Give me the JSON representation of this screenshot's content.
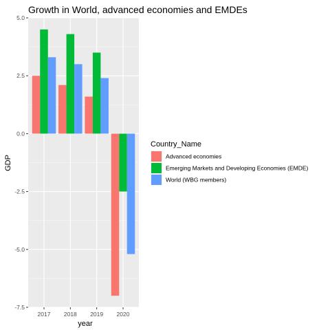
{
  "chart_data": {
    "type": "bar",
    "title": "Growth in World, advanced economies and EMDEs",
    "xlabel": "year",
    "ylabel": "GDP",
    "categories": [
      "2017",
      "2018",
      "2019",
      "2020"
    ],
    "series": [
      {
        "name": "Advanced economies",
        "color": "#F8766D",
        "values": [
          2.5,
          2.1,
          1.6,
          -7.0
        ]
      },
      {
        "name": "Emerging Markets and Developing Economies (EMDE)",
        "color": "#00BA38",
        "values": [
          4.5,
          4.3,
          3.5,
          -2.5
        ]
      },
      {
        "name": "World (WBG members)",
        "color": "#619CFF",
        "values": [
          3.3,
          3.0,
          2.4,
          -5.2
        ]
      }
    ],
    "ylim": [
      -7.5,
      5.0
    ],
    "yticks": [
      -7.5,
      -5.0,
      -2.5,
      0.0,
      2.5,
      5.0
    ],
    "ytick_labels": [
      "-7.5",
      "-5.0",
      "-2.5",
      "0.0",
      "2.5",
      "5.0"
    ],
    "grid": true,
    "legend_title": "Country_Name",
    "legend_position": "right",
    "panel_background": "#EBEBEB"
  }
}
